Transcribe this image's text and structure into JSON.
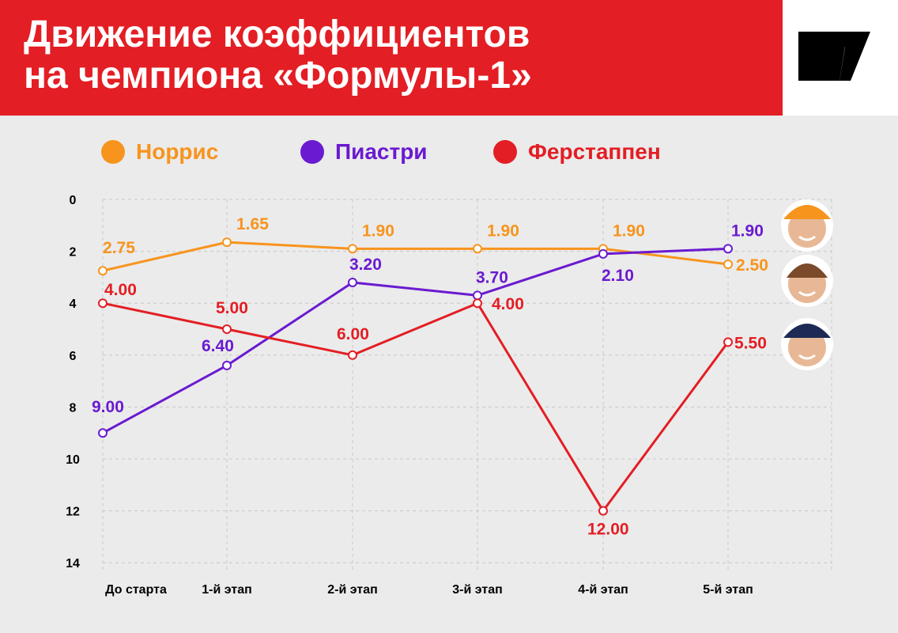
{
  "header": {
    "title_line1": "Движение коэффициентов",
    "title_line2": "на чемпиона «Формулы-1»"
  },
  "logo": {
    "icon": "brand-logo-icon"
  },
  "legend": [
    {
      "label": "Норрис",
      "color": "#f7941d"
    },
    {
      "label": "Пиастри",
      "color": "#6a1ad0"
    },
    {
      "label": "Ферстаппен",
      "color": "#e31e24"
    }
  ],
  "chart_data": {
    "type": "line",
    "title": "Движение коэффициентов на чемпиона «Формулы-1»",
    "categories": [
      "До старта",
      "1-й этап",
      "2-й этап",
      "3-й этап",
      "4-й этап",
      "5-й этап"
    ],
    "y_ticks": [
      "0",
      "2",
      "4",
      "6",
      "8",
      "10",
      "12",
      "14"
    ],
    "ylim": [
      0,
      14
    ],
    "y_inverted": true,
    "grid": true,
    "legend_position": "top-left",
    "series": [
      {
        "name": "Норрис",
        "color": "#f7941d",
        "values": [
          2.75,
          1.65,
          1.9,
          1.9,
          1.9,
          2.5
        ],
        "labels": [
          "2.75",
          "1.65",
          "1.90",
          "1.90",
          "1.90",
          "2.50"
        ]
      },
      {
        "name": "Пиастри",
        "color": "#6a1ad0",
        "values": [
          9.0,
          6.4,
          3.2,
          3.7,
          2.1,
          1.9
        ],
        "labels": [
          "9.00",
          "6.40",
          "3.20",
          "3.70",
          "2.10",
          "1.90"
        ]
      },
      {
        "name": "Ферстаппен",
        "color": "#e31e24",
        "values": [
          4.0,
          5.0,
          6.0,
          4.0,
          12.0,
          5.5
        ],
        "labels": [
          "4.00",
          "5.00",
          "6.00",
          "4.00",
          "12.00",
          "5.50"
        ]
      }
    ]
  }
}
